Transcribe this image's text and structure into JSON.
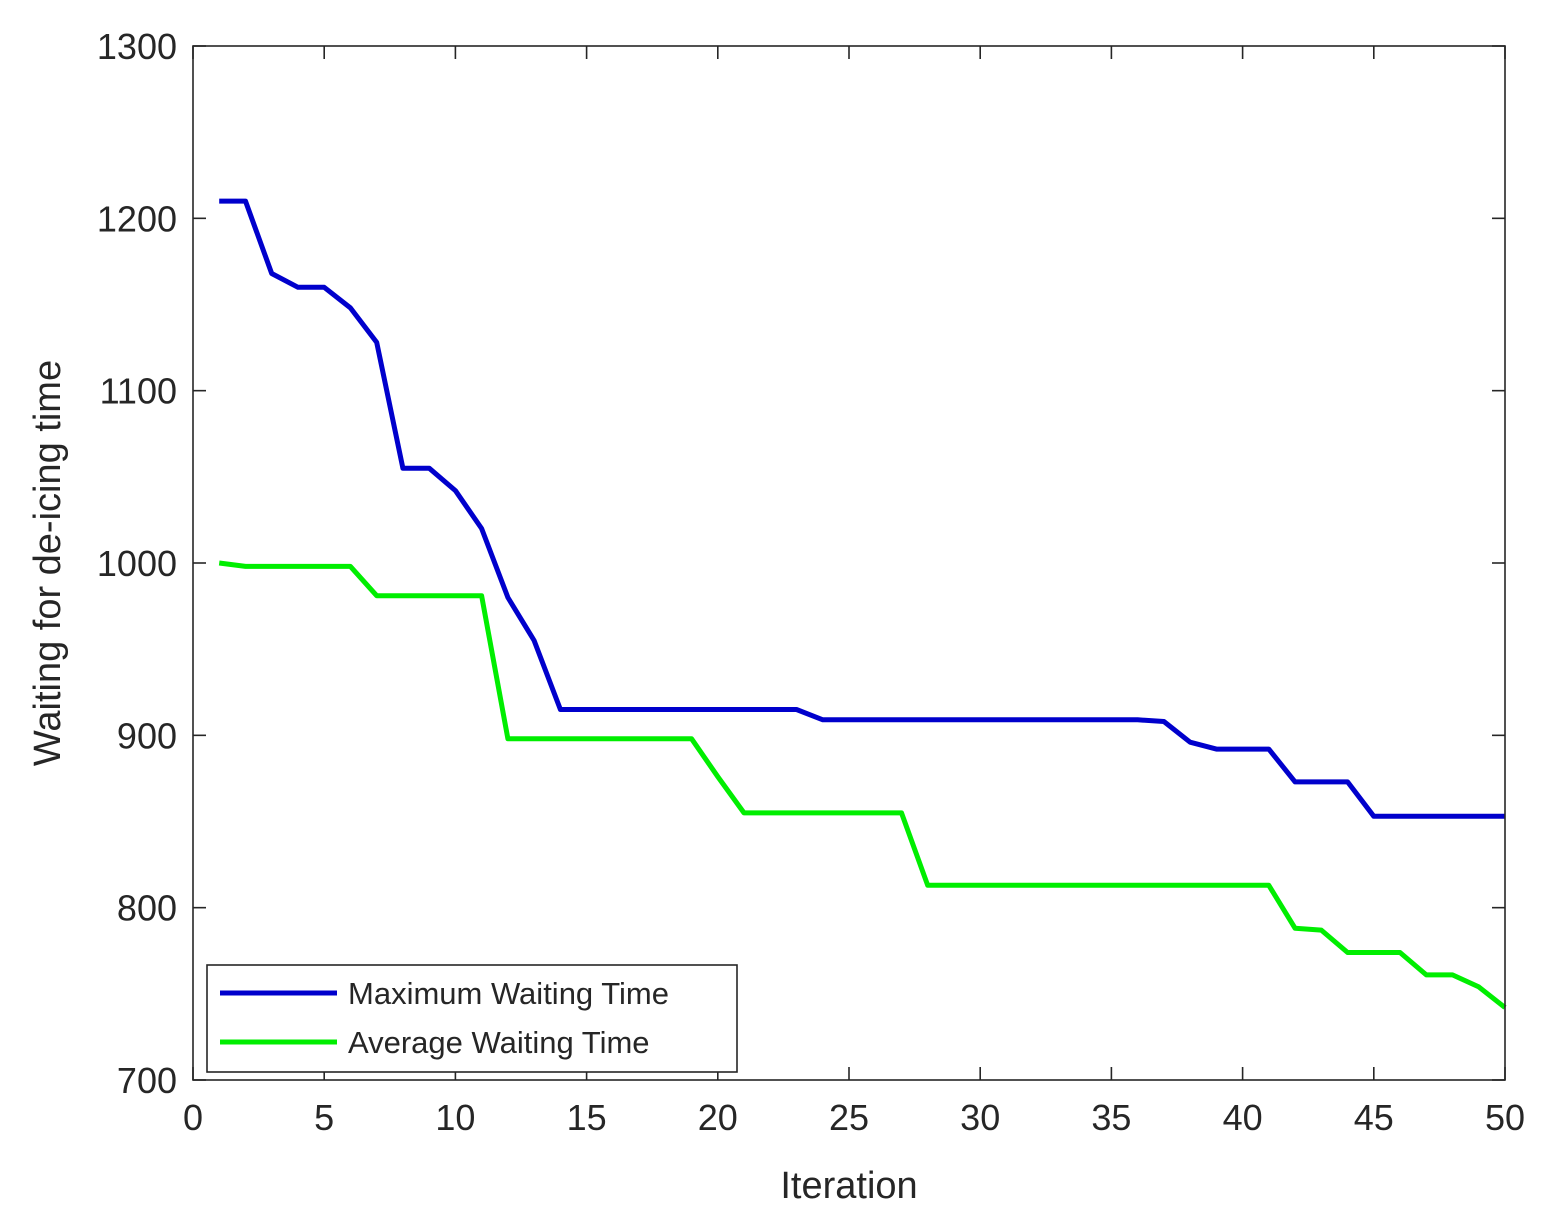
{
  "chart_data": {
    "type": "line",
    "title": "",
    "xlabel": "Iteration",
    "ylabel": "Waiting for de-icing time",
    "xlim": [
      0,
      50
    ],
    "ylim": [
      700,
      1300
    ],
    "xticks": [
      0,
      5,
      10,
      15,
      20,
      25,
      30,
      35,
      40,
      45,
      50
    ],
    "yticks": [
      700,
      800,
      900,
      1000,
      1100,
      1200,
      1300
    ],
    "grid": false,
    "legend_location": "bottom-left",
    "series": [
      {
        "name": "Maximum Waiting Time",
        "color": "#0000cc",
        "x": [
          1,
          2,
          3,
          4,
          5,
          6,
          7,
          8,
          9,
          10,
          11,
          12,
          13,
          14,
          15,
          16,
          17,
          18,
          19,
          20,
          21,
          22,
          23,
          24,
          25,
          26,
          27,
          28,
          29,
          30,
          31,
          32,
          33,
          34,
          35,
          36,
          37,
          38,
          39,
          40,
          41,
          42,
          43,
          44,
          45,
          46,
          47,
          48,
          49,
          50
        ],
        "values": [
          1210,
          1210,
          1168,
          1160,
          1160,
          1148,
          1128,
          1055,
          1055,
          1042,
          1020,
          980,
          955,
          915,
          915,
          915,
          915,
          915,
          915,
          915,
          915,
          915,
          915,
          909,
          909,
          909,
          909,
          909,
          909,
          909,
          909,
          909,
          909,
          909,
          909,
          909,
          908,
          896,
          892,
          892,
          892,
          873,
          873,
          873,
          853,
          853,
          853,
          853,
          853,
          853
        ]
      },
      {
        "name": "Average Waiting Time",
        "color": "#00ee00",
        "x": [
          1,
          2,
          3,
          4,
          5,
          6,
          7,
          8,
          9,
          10,
          11,
          12,
          13,
          14,
          15,
          16,
          17,
          18,
          19,
          20,
          21,
          22,
          23,
          24,
          25,
          26,
          27,
          28,
          29,
          30,
          31,
          32,
          33,
          34,
          35,
          36,
          37,
          38,
          39,
          40,
          41,
          42,
          43,
          44,
          45,
          46,
          47,
          48,
          49,
          50
        ],
        "values": [
          1000,
          998,
          998,
          998,
          998,
          998,
          981,
          981,
          981,
          981,
          981,
          898,
          898,
          898,
          898,
          898,
          898,
          898,
          898,
          876,
          855,
          855,
          855,
          855,
          855,
          855,
          855,
          813,
          813,
          813,
          813,
          813,
          813,
          813,
          813,
          813,
          813,
          813,
          813,
          813,
          813,
          788,
          787,
          774,
          774,
          774,
          761,
          761,
          754,
          742
        ]
      }
    ]
  }
}
